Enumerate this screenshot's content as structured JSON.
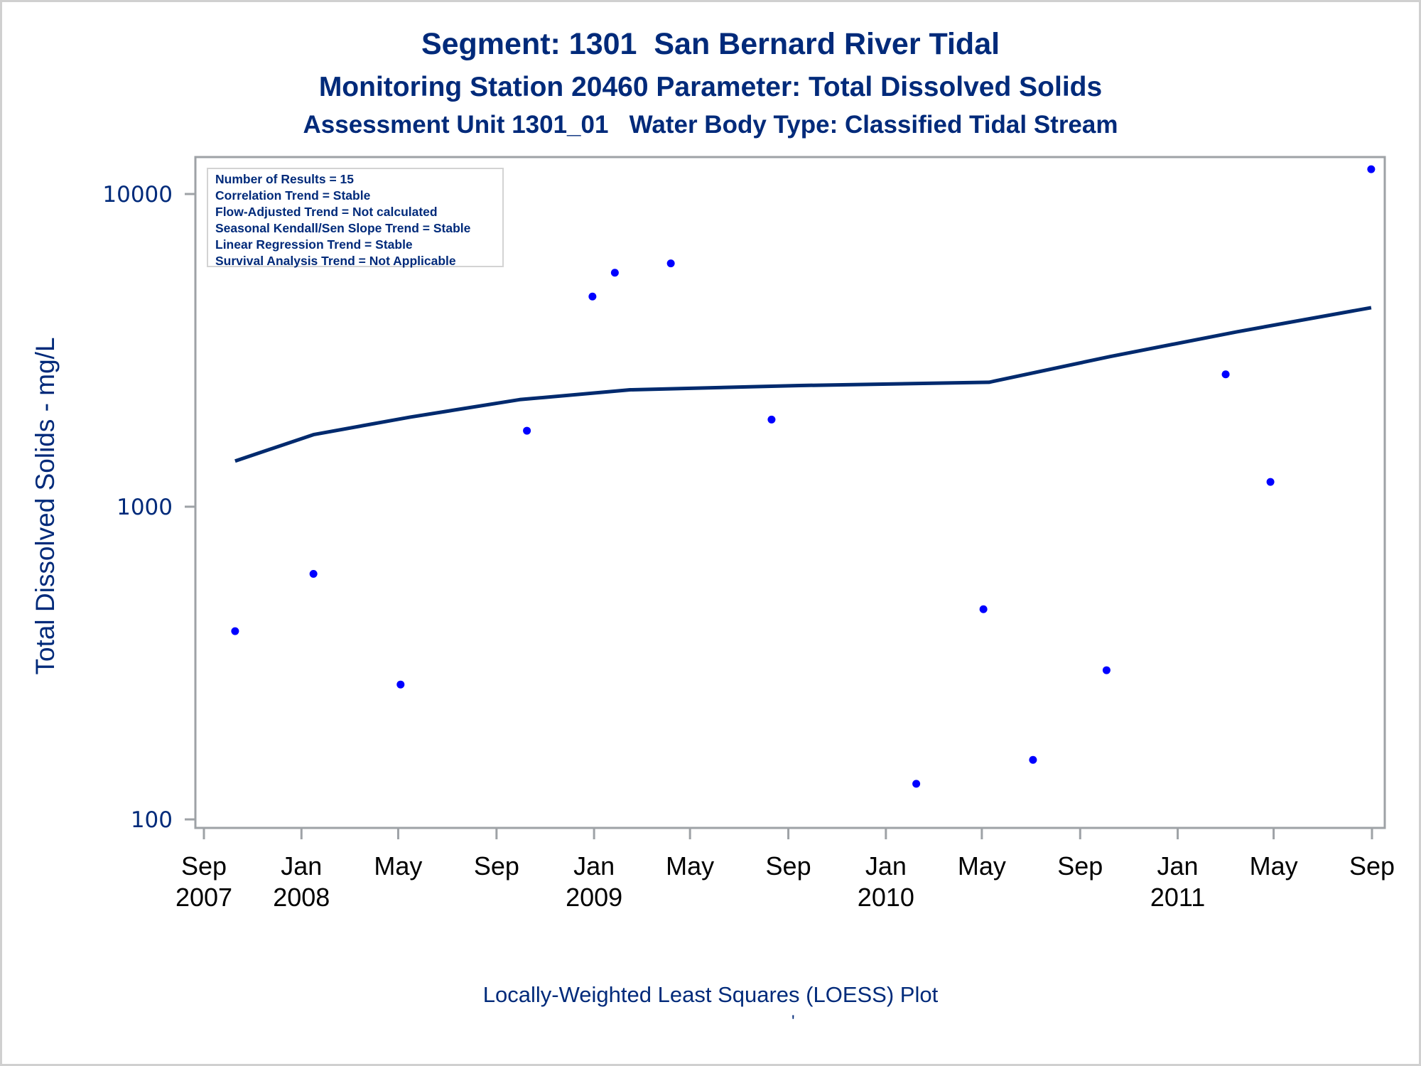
{
  "titles": {
    "line1": "Segment: 1301  San Bernard River Tidal",
    "line2": "Monitoring Station 20460 Parameter: Total Dissolved Solids",
    "line3": "Assessment Unit 1301_01   Water Body Type: Classified Tidal Stream"
  },
  "info_box": [
    "Number of Results = 15",
    "Correlation Trend = Stable",
    "Flow-Adjusted Trend = Not calculated",
    "Seasonal Kendall/Sen Slope Trend = Stable",
    "Linear Regression Trend = Stable",
    "Survival Analysis Trend = Not Applicable"
  ],
  "footnote": "Locally-Weighted Least Squares (LOESS) Plot",
  "footnote_mark": "'",
  "colors": {
    "title": "#002a7a",
    "points": "#0000ff",
    "loess_line": "#002a6e",
    "axis": "#9ea2a6",
    "tick_labels": "#000000"
  },
  "chart_data": {
    "type": "scatter",
    "title": "Segment: 1301  San Bernard River Tidal",
    "ylabel": "Total Dissolved Solids - mg/L",
    "xlabel": "",
    "yscale": "log",
    "ylim": [
      100,
      13000
    ],
    "xlim": [
      "2007-08-22",
      "2011-09-10"
    ],
    "grid": false,
    "y_ticks": [
      {
        "value": 100,
        "label": "100"
      },
      {
        "value": 1000,
        "label": "1000"
      },
      {
        "value": 10000,
        "label": "10000"
      }
    ],
    "x_ticks": [
      {
        "date": "2007-09-01",
        "month": "Sep",
        "year": "2007"
      },
      {
        "date": "2008-01-01",
        "month": "Jan",
        "year": "2008"
      },
      {
        "date": "2008-05-01",
        "month": "May",
        "year": ""
      },
      {
        "date": "2008-09-01",
        "month": "Sep",
        "year": ""
      },
      {
        "date": "2009-01-01",
        "month": "Jan",
        "year": "2009"
      },
      {
        "date": "2009-05-01",
        "month": "May",
        "year": ""
      },
      {
        "date": "2009-09-01",
        "month": "Sep",
        "year": ""
      },
      {
        "date": "2010-01-01",
        "month": "Jan",
        "year": "2010"
      },
      {
        "date": "2010-05-01",
        "month": "May",
        "year": ""
      },
      {
        "date": "2010-09-01",
        "month": "Sep",
        "year": ""
      },
      {
        "date": "2011-01-01",
        "month": "Jan",
        "year": "2011"
      },
      {
        "date": "2011-05-01",
        "month": "May",
        "year": ""
      },
      {
        "date": "2011-09-01",
        "month": "Sep",
        "year": ""
      }
    ],
    "series": [
      {
        "name": "Observed TDS",
        "type": "scatter",
        "points": [
          {
            "x": "2007-10-10",
            "y": 400
          },
          {
            "x": "2008-01-16",
            "y": 610
          },
          {
            "x": "2008-05-04",
            "y": 270
          },
          {
            "x": "2008-10-09",
            "y": 1750
          },
          {
            "x": "2008-12-30",
            "y": 4700
          },
          {
            "x": "2009-01-27",
            "y": 5600
          },
          {
            "x": "2009-04-07",
            "y": 6000
          },
          {
            "x": "2009-08-11",
            "y": 1900
          },
          {
            "x": "2010-02-08",
            "y": 130
          },
          {
            "x": "2010-05-03",
            "y": 470
          },
          {
            "x": "2010-07-04",
            "y": 155
          },
          {
            "x": "2010-10-04",
            "y": 300
          },
          {
            "x": "2011-03-02",
            "y": 2650
          },
          {
            "x": "2011-04-27",
            "y": 1200
          },
          {
            "x": "2011-08-31",
            "y": 12000
          }
        ]
      },
      {
        "name": "LOESS fit",
        "type": "line",
        "points": [
          {
            "x": "2007-10-10",
            "y": 1400
          },
          {
            "x": "2008-01-16",
            "y": 1700
          },
          {
            "x": "2008-05-16",
            "y": 1935
          },
          {
            "x": "2008-09-30",
            "y": 2200
          },
          {
            "x": "2009-02-15",
            "y": 2365
          },
          {
            "x": "2009-09-15",
            "y": 2440
          },
          {
            "x": "2010-05-10",
            "y": 2500
          },
          {
            "x": "2010-10-08",
            "y": 3020
          },
          {
            "x": "2011-03-16",
            "y": 3625
          },
          {
            "x": "2011-08-31",
            "y": 4330
          }
        ]
      }
    ]
  }
}
